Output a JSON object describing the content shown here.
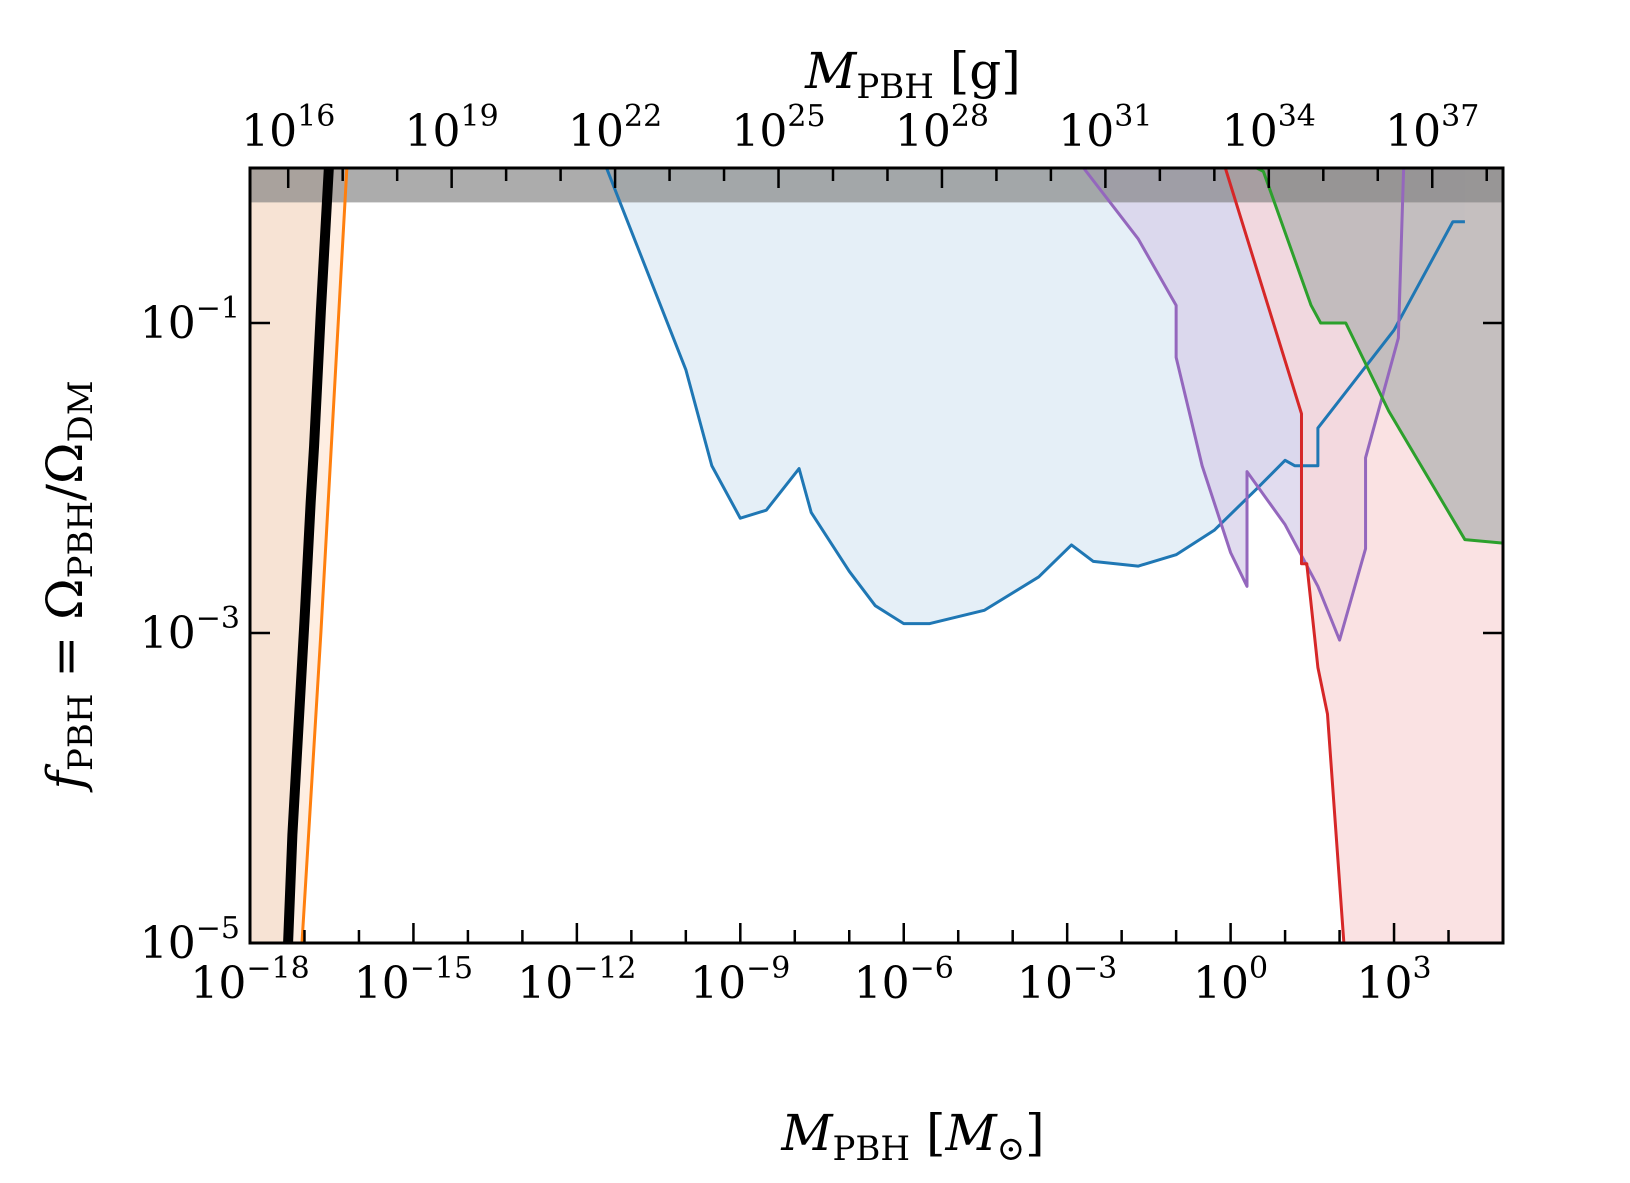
{
  "chart_data": {
    "type": "area",
    "x_scale": "log",
    "y_scale": "log",
    "xlim": [
      1e-18,
      100000.0
    ],
    "ylim": [
      1e-05,
      1
    ],
    "grid": false,
    "legend": "none",
    "xlabel": {
      "main": "M",
      "sub": "PBH",
      "unit_open": " [",
      "unit_main": "M",
      "unit_sub": "⊙",
      "unit_close": "]"
    },
    "ylabel": {
      "f": "f",
      "fsub": "PBH",
      "eq": " = Ω",
      "num_sub": "PBH",
      "slash": "/Ω",
      "den_sub": "DM"
    },
    "top_xlabel": {
      "main": "M",
      "sub": "PBH",
      "unit": " [g]"
    },
    "x_ticks": [
      {
        "value": 1e-18,
        "base": "10",
        "exp": "−18"
      },
      {
        "value": 1e-15,
        "base": "10",
        "exp": "−15"
      },
      {
        "value": 1e-12,
        "base": "10",
        "exp": "−12"
      },
      {
        "value": 1e-09,
        "base": "10",
        "exp": "−9"
      },
      {
        "value": 1e-06,
        "base": "10",
        "exp": "−6"
      },
      {
        "value": 0.001,
        "base": "10",
        "exp": "−3"
      },
      {
        "value": 1,
        "base": "10",
        "exp": "0"
      },
      {
        "value": 1000.0,
        "base": "10",
        "exp": "3"
      }
    ],
    "y_ticks": [
      {
        "value": 1e-05,
        "base": "10",
        "exp": "−5"
      },
      {
        "value": 0.001,
        "base": "10",
        "exp": "−3"
      },
      {
        "value": 0.1,
        "base": "10",
        "exp": "−1"
      }
    ],
    "top_x_ticks": [
      {
        "grams": 1e+16,
        "base": "10",
        "exp": "16"
      },
      {
        "grams": 1e+19,
        "base": "10",
        "exp": "19"
      },
      {
        "grams": 1e+22,
        "base": "10",
        "exp": "22"
      },
      {
        "grams": 1e+25,
        "base": "10",
        "exp": "25"
      },
      {
        "grams": 1e+28,
        "base": "10",
        "exp": "28"
      },
      {
        "grams": 1e+31,
        "base": "10",
        "exp": "31"
      },
      {
        "grams": 1e+34,
        "base": "10",
        "exp": "34"
      },
      {
        "grams": 1e+37,
        "base": "10",
        "exp": "37"
      }
    ],
    "series": [
      {
        "line_color": "#000000",
        "fill_color": "#d9c4b6",
        "line_width": "thick",
        "fill_side": "left",
        "points": [
          [
            5e-18,
            1e-05
          ],
          [
            6e-18,
            5e-05
          ],
          [
            8e-18,
            0.0003
          ],
          [
            1e-17,
            0.0012
          ],
          [
            1.3e-17,
            0.007
          ],
          [
            1.5e-17,
            0.016
          ],
          [
            2e-17,
            0.12
          ],
          [
            2.8e-17,
            1
          ]
        ]
      },
      {
        "line_color": "#ff7f0e",
        "fill_color": "#fde8d8",
        "line_width": "thin",
        "fill_side": "left",
        "points": [
          [
            9e-18,
            1e-05
          ],
          [
            2e-17,
            0.001
          ],
          [
            6e-17,
            1
          ]
        ]
      },
      {
        "line_color": "#1f77b4",
        "fill_color": "#dce9f4",
        "line_width": "thin",
        "fill_side": "above",
        "points": [
          [
            3.5e-12,
            1
          ],
          [
            1e-10,
            0.05
          ],
          [
            3e-10,
            0.012
          ],
          [
            1e-09,
            0.0055
          ],
          [
            3e-09,
            0.0062
          ],
          [
            1.2e-08,
            0.0115
          ],
          [
            2e-08,
            0.006
          ],
          [
            1e-07,
            0.0025
          ],
          [
            3e-07,
            0.0015
          ],
          [
            1e-06,
            0.00115
          ],
          [
            3e-06,
            0.00115
          ],
          [
            3e-05,
            0.0014
          ],
          [
            0.0003,
            0.0023
          ],
          [
            0.0012,
            0.0037
          ],
          [
            0.003,
            0.0029
          ],
          [
            0.02,
            0.0027
          ],
          [
            0.1,
            0.0032
          ],
          [
            0.5,
            0.0046
          ],
          [
            3,
            0.0085
          ],
          [
            10,
            0.013
          ],
          [
            15,
            0.012
          ],
          [
            40,
            0.012
          ],
          [
            40,
            0.021
          ],
          [
            1000.0,
            0.09
          ],
          [
            12000.0,
            0.45
          ],
          [
            20000.0,
            0.45
          ]
        ]
      },
      {
        "line_color": "#9467bd",
        "fill_color": "#d7d0ea",
        "line_width": "thin",
        "fill_side": "above",
        "points": [
          [
            0.002,
            1
          ],
          [
            0.02,
            0.35
          ],
          [
            0.1,
            0.13
          ],
          [
            0.1,
            0.06
          ],
          [
            0.3,
            0.012
          ],
          [
            1,
            0.0033
          ],
          [
            2,
            0.002
          ],
          [
            2,
            0.011
          ],
          [
            10,
            0.005
          ],
          [
            40,
            0.002
          ],
          [
            100,
            0.0009
          ],
          [
            300,
            0.0035
          ],
          [
            300,
            0.0135
          ],
          [
            1200,
            0.08
          ],
          [
            1500,
            1
          ]
        ]
      },
      {
        "line_color": "#d62728",
        "fill_color": "#f8d8da",
        "line_width": "thin",
        "fill_side": "right",
        "points": [
          [
            0.8,
            1
          ],
          [
            20,
            0.026
          ],
          [
            20,
            0.0028
          ],
          [
            25,
            0.0028
          ],
          [
            40,
            0.0006
          ],
          [
            60,
            0.0003
          ],
          [
            120,
            1e-05
          ]
        ]
      },
      {
        "line_color": "#2ca02c",
        "fill_color": "#b3b3b3",
        "line_width": "thin",
        "fill_side": "above",
        "points": [
          [
            3,
            1
          ],
          [
            4,
            0.95
          ],
          [
            30,
            0.13
          ],
          [
            45,
            0.1
          ],
          [
            130,
            0.1
          ],
          [
            800,
            0.027
          ],
          [
            20000.0,
            0.004
          ],
          [
            100000.0,
            0.0038
          ]
        ]
      }
    ],
    "top_band": {
      "color": "#7f7f7f",
      "opacity": 0.65,
      "y_from": 0.6,
      "y_to": 1
    }
  }
}
